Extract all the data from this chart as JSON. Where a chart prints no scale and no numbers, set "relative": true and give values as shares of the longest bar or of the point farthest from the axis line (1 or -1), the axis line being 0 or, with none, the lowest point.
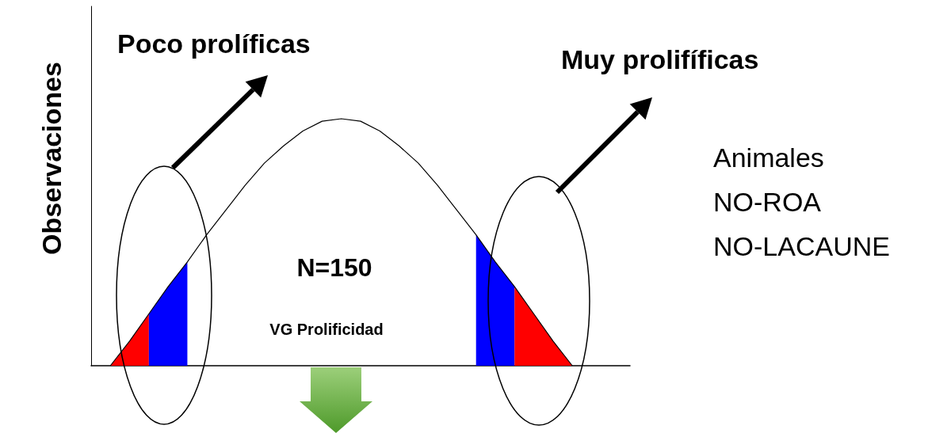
{
  "chart_data": {
    "type": "line",
    "relative": true,
    "ylabel": "Observaciones",
    "categories": [
      null,
      null,
      null,
      null,
      null,
      null,
      null,
      null,
      null,
      null,
      null,
      null,
      null,
      null,
      null,
      null,
      null,
      null,
      null,
      null,
      null,
      null,
      null,
      null,
      null,
      null,
      null,
      null,
      null
    ],
    "series": [
      {
        "color": "#000000",
        "values": [
          null,
          0,
          0.1,
          0.21,
          0.32,
          0.42,
          0.53,
          0.63,
          0.73,
          0.82,
          0.89,
          0.95,
          0.99,
          1,
          0.99,
          0.95,
          0.89,
          0.82,
          0.73,
          0.63,
          0.53,
          0.42,
          0.32,
          0.21,
          0.1,
          0,
          null,
          null,
          null
        ]
      },
      {
        "type": "area",
        "color": "#ff0000",
        "values": [
          null,
          0,
          0.1,
          0.21,
          null,
          null,
          null,
          null,
          null,
          null,
          null,
          null,
          null,
          null,
          null,
          null,
          null,
          null,
          null,
          null,
          null,
          null,
          null,
          null,
          null,
          null,
          null,
          null,
          null
        ]
      },
      {
        "type": "area",
        "color": "#0000ff",
        "values": [
          null,
          null,
          null,
          0.21,
          0.32,
          0.42,
          null,
          null,
          null,
          null,
          null,
          null,
          null,
          null,
          null,
          null,
          null,
          null,
          null,
          null,
          0.53,
          0.42,
          0.32,
          null,
          null,
          null,
          null,
          null,
          null
        ]
      },
      {
        "type": "area",
        "color": "#ff0000",
        "values": [
          null,
          null,
          null,
          null,
          null,
          null,
          null,
          null,
          null,
          null,
          null,
          null,
          null,
          null,
          null,
          null,
          null,
          null,
          null,
          null,
          null,
          null,
          0.32,
          0.21,
          0.1,
          0,
          null,
          null,
          null
        ]
      }
    ],
    "annotations": [
      "Poco prolíficas",
      "Muy prolifíficas",
      "N=150",
      "VG Prolificidad",
      "Animales\nNO-ROA\nNO-LACAUNE"
    ],
    "marker": "none",
    "grid": false
  }
}
